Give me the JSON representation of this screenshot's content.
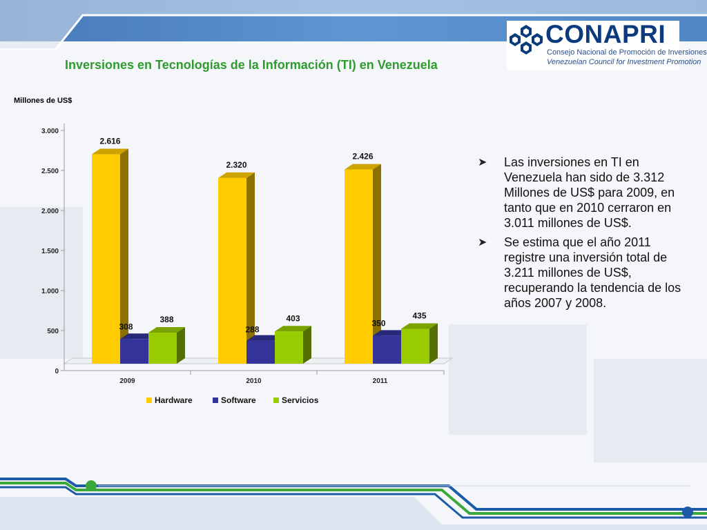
{
  "header": {
    "title": "Inversiones en Tecnologías de la Información (TI) en Venezuela",
    "brand_color": "#0b3b7c",
    "title_color": "#2f9b2f"
  },
  "logo": {
    "name": "CONAPRI",
    "subtitle_es": "Consejo Nacional de Promoción de Inversiones",
    "subtitle_en": "Venezuelan Council for Investment Promotion"
  },
  "chart_data": {
    "type": "bar",
    "style": "3d-clustered",
    "title": "",
    "ylabel": "Millones de US$",
    "xlabel": "",
    "categories": [
      "2009",
      "2010",
      "2011"
    ],
    "ylim": [
      0,
      3000
    ],
    "yticks": [
      {
        "value": 0,
        "label": "0"
      },
      {
        "value": 500,
        "label": "500"
      },
      {
        "value": 1000,
        "label": "1.000"
      },
      {
        "value": 1500,
        "label": "1.500"
      },
      {
        "value": 2000,
        "label": "2.000"
      },
      {
        "value": 2500,
        "label": "2.500"
      },
      {
        "value": 3000,
        "label": "3.000"
      }
    ],
    "series": [
      {
        "name": "Hardware",
        "color": "#ffcc00",
        "values": [
          2616,
          2320,
          2426
        ],
        "labels": [
          "2.616",
          "2.320",
          "2.426"
        ]
      },
      {
        "name": "Software",
        "color": "#33339a",
        "values": [
          308,
          288,
          350
        ],
        "labels": [
          "308",
          "288",
          "350"
        ]
      },
      {
        "name": "Servicios",
        "color": "#99cc00",
        "values": [
          388,
          403,
          435
        ],
        "labels": [
          "388",
          "403",
          "435"
        ]
      }
    ],
    "grid": false,
    "legend": "bottom"
  },
  "bullets": [
    "Las inversiones en TI en Venezuela han sido de 3.312 Millones de US$ para 2009, en tanto que en 2010 cerraron en 3.011 millones de US$.",
    "Se estima que el año 2011 registre una inversión total de 3.211 millones de US$, recuperando la tendencia de los años 2007 y 2008."
  ]
}
